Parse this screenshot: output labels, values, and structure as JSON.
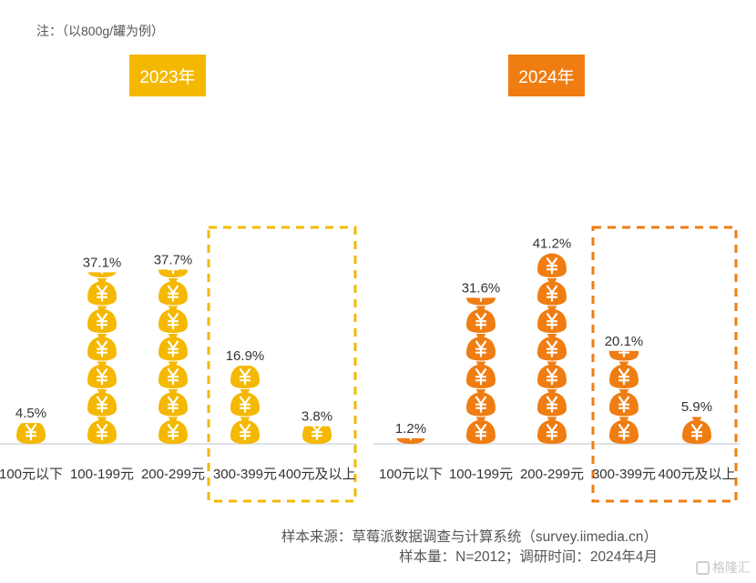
{
  "note": "注：（以800g/罐为例）",
  "source_line1": "样本来源：草莓派数据调查与计算系统（survey.iimedia.cn）",
  "source_line2": "样本量：N=2012；调研时间：2024年4月",
  "watermark": "格隆汇",
  "chart_data": [
    {
      "type": "bar",
      "title": "2023年",
      "categories": [
        "100元以下",
        "100-199元",
        "200-299元",
        "300-399元",
        "400元及以上"
      ],
      "values": [
        4.5,
        37.1,
        37.7,
        16.9,
        3.8
      ],
      "labels": [
        "4.5%",
        "37.1%",
        "37.7%",
        "16.9%",
        "3.8%"
      ],
      "unit": "%",
      "color": "#f5b800",
      "highlighted_categories": [
        "300-399元",
        "400元及以上"
      ],
      "mark": "money-bag-icon",
      "ylim": [
        0,
        45
      ]
    },
    {
      "type": "bar",
      "title": "2024年",
      "categories": [
        "100元以下",
        "100-199元",
        "200-299元",
        "300-399元",
        "400元及以上"
      ],
      "values": [
        1.2,
        31.6,
        41.2,
        20.1,
        5.9
      ],
      "labels": [
        "1.2%",
        "31.6%",
        "41.2%",
        "20.1%",
        "5.9%"
      ],
      "unit": "%",
      "color": "#ef7d12",
      "highlighted_categories": [
        "300-399元",
        "400元及以上"
      ],
      "mark": "money-bag-icon",
      "ylim": [
        0,
        45
      ]
    }
  ]
}
